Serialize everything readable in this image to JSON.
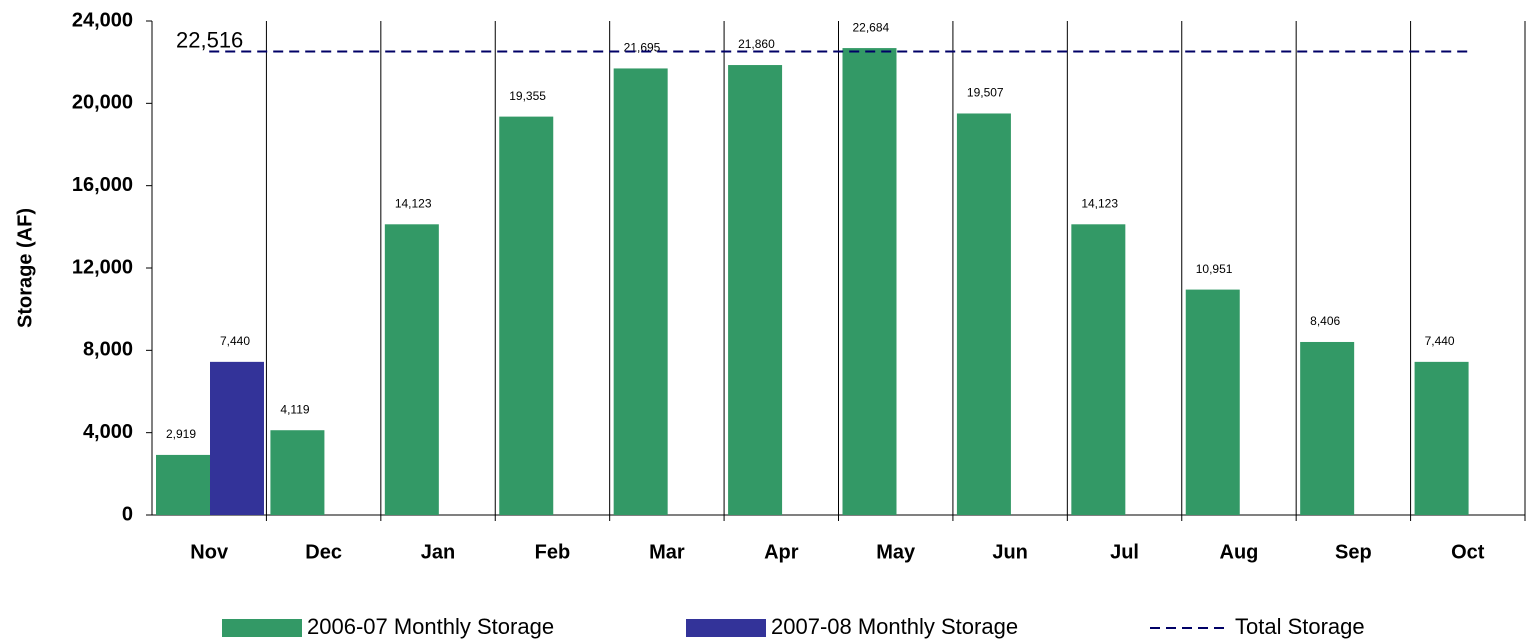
{
  "chart_data": {
    "type": "bar",
    "y_label": "Storage (AF)",
    "categories": [
      "Nov",
      "Dec",
      "Jan",
      "Feb",
      "Mar",
      "Apr",
      "May",
      "Jun",
      "Jul",
      "Aug",
      "Sep",
      "Oct"
    ],
    "series": [
      {
        "name": "2006-07 Monthly Storage",
        "color": "#339966",
        "values": [
          2919,
          4119,
          14123,
          19355,
          21695,
          21860,
          22684,
          19507,
          14123,
          10951,
          8406,
          7440
        ],
        "value_labels": [
          "2,919",
          "4,119",
          "14,123",
          "19,355",
          "21,695",
          "21,860",
          "22,684",
          "19,507",
          "14,123",
          "10,951",
          "8,406",
          "7,440"
        ]
      },
      {
        "name": "2007-08 Monthly Storage",
        "color": "#333399",
        "values": [
          7440,
          null,
          null,
          null,
          null,
          null,
          null,
          null,
          null,
          null,
          null,
          null
        ],
        "value_labels": [
          "7,440",
          null,
          null,
          null,
          null,
          null,
          null,
          null,
          null,
          null,
          null,
          null
        ]
      }
    ],
    "reference_line": {
      "name": "Total Storage",
      "value": 22516,
      "label": "22,516",
      "color": "#000066"
    },
    "ylim": [
      0,
      24000
    ],
    "yticks": [
      0,
      {
        "value": 4000,
        "label": "4,000"
      },
      {
        "value": 8000,
        "label": "8,000"
      },
      {
        "value": 12000,
        "label": "12,000"
      },
      {
        "value": 16000,
        "label": "16,000"
      },
      {
        "value": 20000,
        "label": "20,000"
      },
      {
        "value": 24000,
        "label": "24,000"
      }
    ],
    "legend": "bottom"
  }
}
